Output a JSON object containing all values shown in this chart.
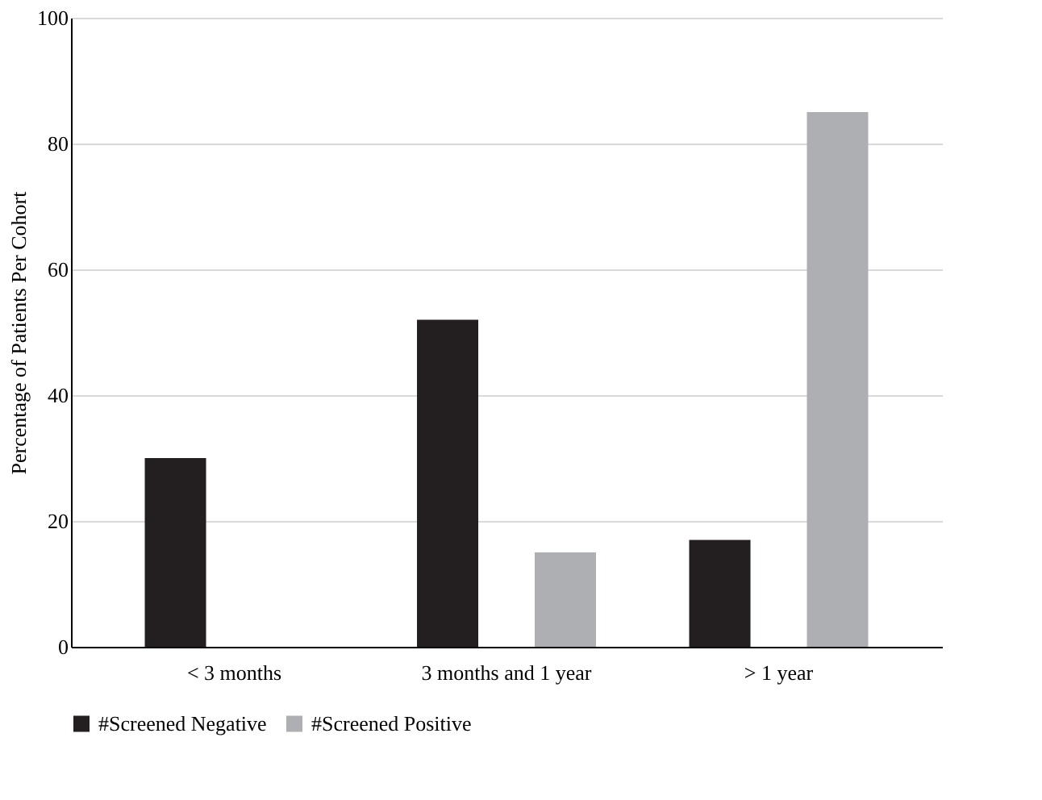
{
  "chart_data": {
    "type": "bar",
    "ylabel": "Percentage of Patients Per Cohort",
    "categories": [
      "< 3 months",
      "3 months and 1 year",
      "> 1 year"
    ],
    "series": [
      {
        "name": "#Screened Negative",
        "color": "#231f20",
        "values": [
          30,
          52,
          17
        ]
      },
      {
        "name": "#Screened Positive",
        "color": "#aeafb2",
        "values": [
          null,
          15,
          85
        ]
      }
    ],
    "ylim": [
      0,
      100
    ],
    "yticks": [
      0,
      20,
      40,
      60,
      80,
      100
    ],
    "grid": "y",
    "legend": "bottom"
  }
}
